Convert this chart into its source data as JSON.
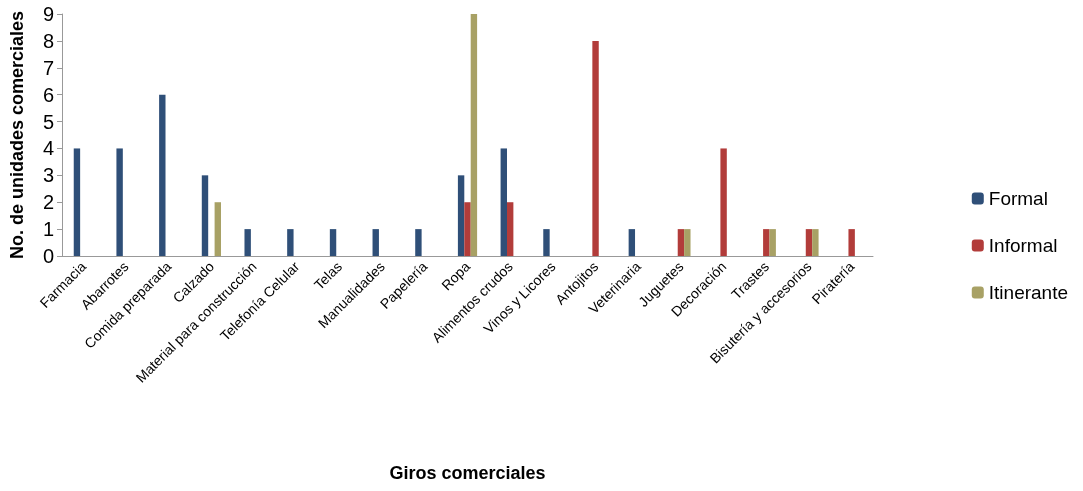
{
  "chart_data": {
    "type": "bar",
    "xlabel": "Giros comerciales",
    "ylabel": "No. de unidades comerciales",
    "categories": [
      "Farmacia",
      "Abarrotes",
      "Comida preparada",
      "Calzado",
      "Material para construcción",
      "Telefonía Celular",
      "Telas",
      "Manualidades",
      "Papelería",
      "Ropa",
      "Alimentos crudos",
      "Vinos y Licores",
      "Antojitos",
      "Veterinaria",
      "Juguetes",
      "Decoración",
      "Trastes",
      "Bisutería y accesorios",
      "Piratería"
    ],
    "series": [
      {
        "name": "Formal",
        "color": "#2f4f78",
        "values": [
          4,
          4,
          6,
          3,
          1,
          1,
          1,
          1,
          1,
          3,
          4,
          1,
          0,
          1,
          0,
          0,
          0,
          0,
          0
        ]
      },
      {
        "name": "Informal",
        "color": "#b23c3a",
        "values": [
          0,
          0,
          0,
          0,
          0,
          0,
          0,
          0,
          0,
          2,
          2,
          0,
          8,
          0,
          1,
          4,
          1,
          1,
          1
        ]
      },
      {
        "name": "Itinerante",
        "color": "#a8a165",
        "values": [
          0,
          0,
          0,
          2,
          0,
          0,
          0,
          0,
          0,
          9,
          0,
          0,
          0,
          0,
          1,
          0,
          1,
          1,
          0
        ]
      }
    ],
    "ylim": [
      0,
      9
    ],
    "yticks": [
      0,
      1,
      2,
      3,
      4,
      5,
      6,
      7,
      8,
      9
    ],
    "grid": false,
    "legend": "right"
  }
}
